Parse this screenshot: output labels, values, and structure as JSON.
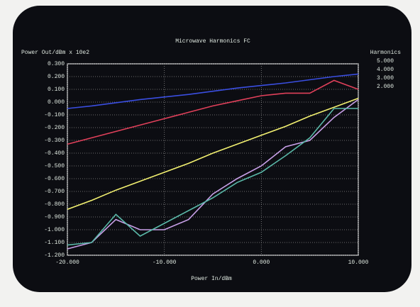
{
  "chart_data": {
    "type": "line",
    "title": "Microwave Harmonics FC",
    "y_label": "Power Out/dBm x 10e2",
    "x_label": "Power In/dBm",
    "legend_title": "Harmonics",
    "x": [
      -20,
      -17.5,
      -15,
      -12.5,
      -10,
      -7.5,
      -5,
      -2.5,
      0,
      2.5,
      5,
      7.5,
      10
    ],
    "series": [
      {
        "color": "#3a4ee0",
        "values": [
          -0.05,
          -0.03,
          -0.005,
          0.02,
          0.04,
          0.06,
          0.085,
          0.11,
          0.13,
          0.15,
          0.175,
          0.2,
          0.22
        ]
      },
      {
        "name": "5.000",
        "color": "#c8a0e8",
        "values": [
          -1.15,
          -1.1,
          -0.92,
          -1.0,
          -1.0,
          -0.92,
          -0.72,
          -0.6,
          -0.5,
          -0.35,
          -0.3,
          -0.12,
          0.02
        ]
      },
      {
        "name": "4.000",
        "color": "#e0405a",
        "values": [
          -0.33,
          -0.28,
          -0.23,
          -0.18,
          -0.13,
          -0.08,
          -0.03,
          0.01,
          0.05,
          0.07,
          0.07,
          0.17,
          0.1
        ]
      },
      {
        "name": "3.000",
        "color": "#f2f070",
        "values": [
          -0.84,
          -0.77,
          -0.69,
          -0.62,
          -0.55,
          -0.48,
          -0.4,
          -0.33,
          -0.26,
          -0.19,
          -0.11,
          -0.04,
          0.03
        ]
      },
      {
        "name": "2.000",
        "color": "#5ab8a8",
        "values": [
          -1.12,
          -1.1,
          -0.88,
          -1.05,
          -0.95,
          -0.85,
          -0.75,
          -0.63,
          -0.55,
          -0.42,
          -0.28,
          -0.05,
          -0.05
        ]
      }
    ],
    "xlim": [
      -20,
      10
    ],
    "xticks": [
      {
        "value": -20,
        "label": "-20.000"
      },
      {
        "value": -10,
        "label": "-10.000"
      },
      {
        "value": 0,
        "label": "0.000"
      },
      {
        "value": 10,
        "label": "10.000"
      }
    ],
    "ylim": [
      -1.2,
      0.3
    ],
    "yticks": [
      {
        "value": 0.3,
        "label": "0.300"
      },
      {
        "value": 0.2,
        "label": "0.200"
      },
      {
        "value": 0.1,
        "label": "0.100"
      },
      {
        "value": 0,
        "label": "0.000"
      },
      {
        "value": -0.1,
        "label": "-0.100"
      },
      {
        "value": -0.2,
        "label": "-0.200"
      },
      {
        "value": -0.3,
        "label": "-0.300"
      },
      {
        "value": -0.4,
        "label": "-0.400"
      },
      {
        "value": -0.5,
        "label": "-0.500"
      },
      {
        "value": -0.6,
        "label": "-0.600"
      },
      {
        "value": -0.7,
        "label": "-0.700"
      },
      {
        "value": -0.8,
        "label": "-0.800"
      },
      {
        "value": -0.9,
        "label": "-0.900"
      },
      {
        "value": -1.0,
        "label": "-1.000"
      },
      {
        "value": -1.1,
        "label": "-1.100"
      },
      {
        "value": -1.2,
        "label": "-1.200"
      }
    ],
    "grid": true
  }
}
